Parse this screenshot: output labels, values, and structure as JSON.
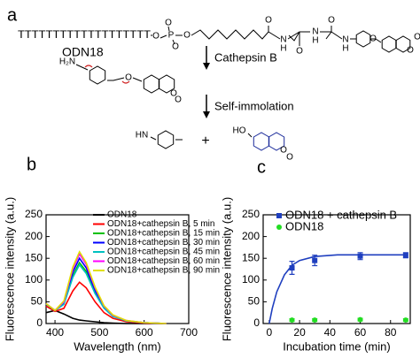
{
  "scheme": {
    "panel": "a",
    "strand": "TTTTTTTTTTTTTTTTTTT",
    "strand_label": "ODN18",
    "enzyme": "Cathepsin B",
    "step": "Self-immolation",
    "plus": "+",
    "atoms": [
      "O",
      "P",
      "O",
      "O",
      "O",
      "O",
      "N",
      "H",
      "O",
      "N",
      "H",
      "O",
      "N",
      "H",
      "O",
      "O",
      "O",
      "H₂N",
      "O",
      "O",
      "O",
      "HN",
      "HO",
      "O",
      "O"
    ]
  },
  "chart_data": [
    {
      "type": "line",
      "panel": "b",
      "xlabel": "Wavelength (nm)",
      "ylabel": "Fluorescence intensity (a.u.)",
      "x": [
        380,
        400,
        420,
        440,
        455,
        470,
        490,
        510,
        530,
        560,
        600,
        650
      ],
      "series": [
        {
          "name": "ODN18",
          "color": "#000000",
          "values": [
            25,
            30,
            22,
            12,
            8,
            6,
            4,
            2,
            1,
            0,
            0,
            0
          ]
        },
        {
          "name": "ODN18+cathepsin B, 5 min",
          "color": "#ff0000",
          "values": [
            40,
            28,
            35,
            75,
            95,
            82,
            50,
            25,
            12,
            4,
            1,
            0
          ]
        },
        {
          "name": "ODN18+cathepsin B, 15 min",
          "color": "#00c000",
          "values": [
            45,
            30,
            45,
            110,
            140,
            120,
            72,
            36,
            17,
            6,
            2,
            0
          ]
        },
        {
          "name": "ODN18+cathepsin B, 30 min",
          "color": "#0000ff",
          "values": [
            45,
            30,
            48,
            118,
            150,
            128,
            76,
            38,
            18,
            6,
            2,
            0
          ]
        },
        {
          "name": "ODN18+cathepsin B, 45 min",
          "color": "#00c0c0",
          "values": [
            45,
            30,
            44,
            106,
            135,
            115,
            69,
            35,
            16,
            6,
            2,
            0
          ]
        },
        {
          "name": "ODN18+cathepsin B, 60 min",
          "color": "#ff00ff",
          "values": [
            46,
            30,
            50,
            126,
            160,
            136,
            82,
            40,
            19,
            7,
            2,
            0
          ]
        },
        {
          "name": "ODN18+cathepsin B, 90 min",
          "color": "#e0e000",
          "values": [
            46,
            30,
            52,
            130,
            165,
            140,
            84,
            41,
            20,
            7,
            2,
            0
          ]
        }
      ],
      "xlim": [
        380,
        700
      ],
      "xticks": [
        400,
        500,
        600,
        700
      ],
      "ylim": [
        0,
        250
      ],
      "yticks": [
        0,
        50,
        100,
        150,
        200,
        250
      ],
      "legend": "upper right"
    },
    {
      "type": "scatter",
      "panel": "c",
      "xlabel": "Incubation time (min)",
      "ylabel": "Fluorescence intensity (a.u.)",
      "x": [
        15,
        30,
        60,
        90
      ],
      "series": [
        {
          "name": "ODN18 + cathepsin B",
          "color": "#1f3fbf",
          "marker": "square",
          "values": [
            128,
            145,
            155,
            157
          ],
          "errors": [
            15,
            12,
            8,
            6
          ]
        },
        {
          "name": "ODN18",
          "color": "#22dd22",
          "marker": "circle",
          "values": [
            8,
            8,
            9,
            8
          ],
          "errors": [
            3,
            3,
            3,
            3
          ]
        }
      ],
      "fit": {
        "color": "#1f3fbf",
        "x": [
          0,
          2,
          5,
          10,
          15,
          20,
          30,
          45,
          60,
          90
        ],
        "values": [
          0,
          35,
          73,
          112,
          134,
          145,
          154,
          158,
          158,
          158
        ]
      },
      "xlim": [
        -4,
        93
      ],
      "xticks": [
        0,
        20,
        40,
        60,
        80
      ],
      "ylim": [
        0,
        250
      ],
      "yticks": [
        0,
        50,
        100,
        150,
        200,
        250
      ],
      "legend": "upper right"
    }
  ]
}
